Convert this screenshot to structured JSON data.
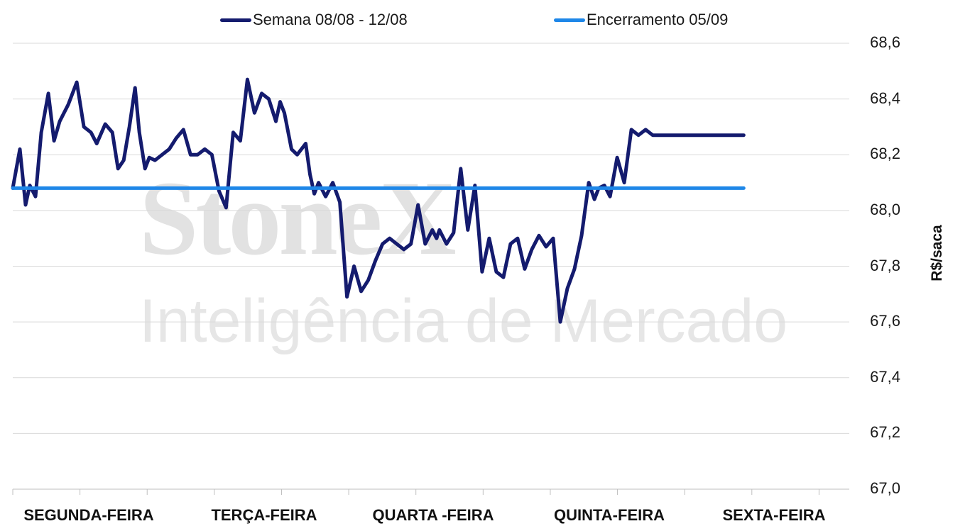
{
  "watermark": {
    "brand": "StoneX",
    "tagline": "Inteligência de Mercado"
  },
  "colors": {
    "series_week": "#141b6e",
    "series_close": "#1e87e8",
    "grid": "#d9d9d9"
  },
  "chart_data": {
    "type": "line",
    "ylabel": "R$/saca",
    "ylim": [
      67.0,
      68.6
    ],
    "yticks": [
      "67,0",
      "67,2",
      "67,4",
      "67,6",
      "67,8",
      "68,0",
      "68,2",
      "68,4",
      "68,6"
    ],
    "categories": [
      "SEGUNDA-FEIRA",
      "TERÇA-FEIRA",
      "QUARTA -FEIRA",
      "QUINTA-FEIRA",
      "SEXTA-FEIRA"
    ],
    "grid": true,
    "legend_position": "top",
    "series": [
      {
        "name": "Semana 08/08 - 12/08",
        "x": [
          0,
          0.05,
          0.09,
          0.12,
          0.16,
          0.2,
          0.25,
          0.29,
          0.33,
          0.39,
          0.45,
          0.5,
          0.55,
          0.59,
          0.65,
          0.7,
          0.74,
          0.78,
          0.82,
          0.86,
          0.89,
          0.93,
          0.96,
          1.0,
          1.05,
          1.1,
          1.15,
          1.2,
          1.25,
          1.3,
          1.35,
          1.4,
          1.45,
          1.5,
          1.55,
          1.6,
          1.65,
          1.7,
          1.75,
          1.8,
          1.85,
          1.88,
          1.91,
          1.96,
          2.0,
          2.06,
          2.09,
          2.12,
          2.15,
          2.2,
          2.25,
          2.3,
          2.35,
          2.4,
          2.45,
          2.5,
          2.55,
          2.6,
          2.65,
          2.7,
          2.75,
          2.8,
          2.85,
          2.9,
          2.95,
          2.98,
          3.0,
          3.05,
          3.1,
          3.15,
          3.2,
          3.25,
          3.3,
          3.35,
          3.4,
          3.45,
          3.5,
          3.55,
          3.6,
          3.65,
          3.7,
          3.75,
          3.8,
          3.85,
          3.9,
          3.95,
          4.0,
          4.05,
          4.09,
          4.12,
          4.16,
          4.2,
          4.25,
          4.3,
          4.35,
          4.4,
          4.45,
          4.5,
          4.55,
          4.6,
          4.65,
          4.7,
          4.75,
          4.8,
          4.85,
          4.9,
          4.95,
          5.0,
          5.05,
          5.1,
          5.14
        ],
        "values": [
          68.08,
          68.22,
          68.02,
          68.09,
          68.05,
          68.28,
          68.42,
          68.25,
          68.32,
          68.38,
          68.46,
          68.3,
          68.28,
          68.24,
          68.31,
          68.28,
          68.15,
          68.18,
          68.3,
          68.44,
          68.28,
          68.15,
          68.19,
          68.18,
          68.2,
          68.22,
          68.26,
          68.29,
          68.2,
          68.2,
          68.22,
          68.2,
          68.07,
          68.01,
          68.28,
          68.25,
          68.47,
          68.35,
          68.42,
          68.4,
          68.32,
          68.39,
          68.35,
          68.22,
          68.2,
          68.24,
          68.13,
          68.06,
          68.1,
          68.05,
          68.1,
          68.03,
          67.69,
          67.8,
          67.71,
          67.75,
          67.82,
          67.88,
          67.9,
          67.88,
          67.86,
          67.88,
          68.02,
          67.88,
          67.93,
          67.9,
          67.93,
          67.88,
          67.92,
          68.15,
          67.93,
          68.09,
          67.78,
          67.9,
          67.78,
          67.76,
          67.88,
          67.9,
          67.79,
          67.86,
          67.91,
          67.87,
          67.9,
          67.6,
          67.72,
          67.79,
          67.91,
          68.1,
          68.04,
          68.08,
          68.09,
          68.05,
          68.19,
          68.1,
          68.29,
          68.27,
          68.29,
          68.27,
          68.27,
          68.27,
          68.27,
          68.27,
          68.27,
          68.27,
          68.27,
          68.27,
          68.27,
          68.27,
          68.27,
          68.27,
          68.27
        ]
      },
      {
        "name": "Encerramento 05/09",
        "x": [
          0,
          5.14
        ],
        "values": [
          68.08,
          68.08
        ]
      }
    ]
  }
}
